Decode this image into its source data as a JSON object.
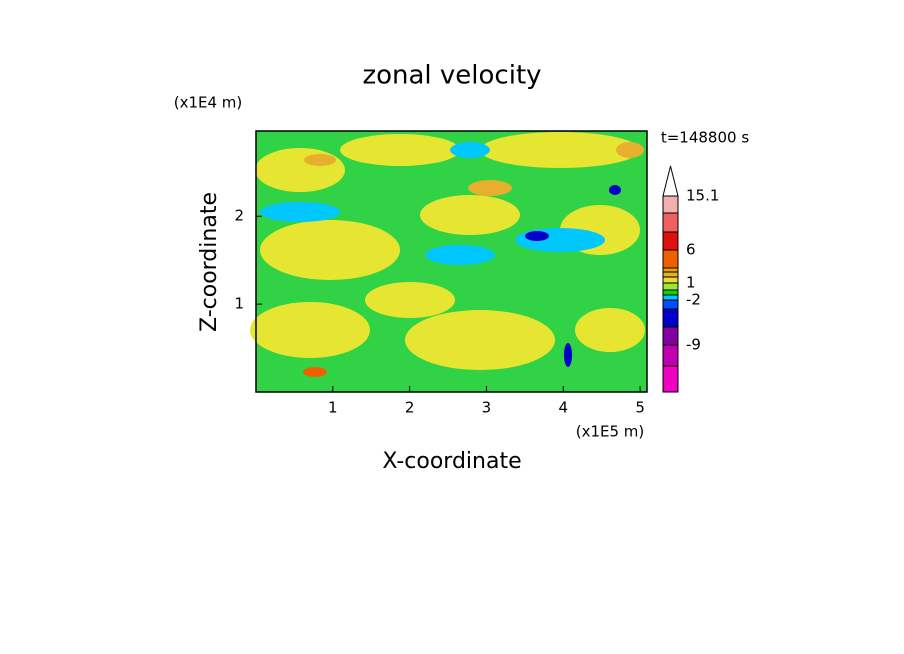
{
  "chart_data": {
    "type": "contour",
    "title": "zonal velocity",
    "x_label": "X-coordinate",
    "y_label": "Z-coordinate",
    "x_unit": "(x1E5 m)",
    "y_unit": "(x1E4 m)",
    "annotation": "t=148800 s",
    "xlim": [
      0,
      5.09
    ],
    "xticks": [
      1,
      2,
      3,
      4,
      5
    ],
    "ylim": [
      0,
      2.97
    ],
    "yticks": [
      1,
      2
    ],
    "colorbar": {
      "colors": [
        "#f000c0",
        "#c000b0",
        "#8000a0",
        "#0000c8",
        "#0050ff",
        "#00c8ff",
        "#00dc00",
        "#a0e632",
        "#e6dc32",
        "#e6af2d",
        "#f0a000",
        "#f06000",
        "#e01010",
        "#f06060",
        "#f0b0b0"
      ],
      "labels": [
        null,
        -9,
        null,
        null,
        -2,
        null,
        null,
        1,
        null,
        null,
        null,
        6,
        null,
        null,
        15.1
      ]
    }
  }
}
